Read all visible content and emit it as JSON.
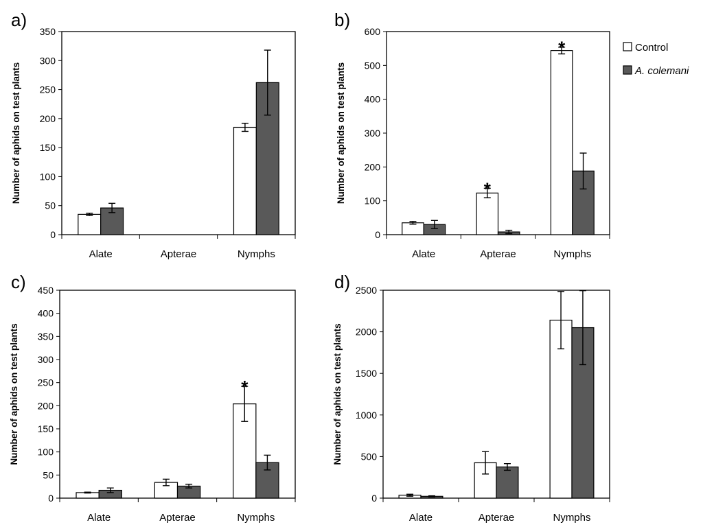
{
  "legend": {
    "items": [
      {
        "label": "Control",
        "color": "#ffffff"
      },
      {
        "label": "A. colemani",
        "color": "#595959"
      }
    ]
  },
  "chart_data": [
    {
      "panel_label": "a)",
      "type": "bar",
      "categories": [
        "Alate",
        "Apterae",
        "Nymphs"
      ],
      "ylabel": "Number of aphids on test plants",
      "ylim": [
        0,
        350
      ],
      "yticks": [
        0,
        50,
        100,
        150,
        200,
        250,
        300,
        350
      ],
      "series": [
        {
          "name": "Control",
          "values": [
            35,
            0,
            185
          ],
          "errors": [
            2,
            0,
            7
          ],
          "significant": [
            false,
            false,
            false
          ]
        },
        {
          "name": "A. colemani",
          "values": [
            46,
            0,
            262
          ],
          "errors": [
            8,
            0,
            56
          ],
          "significant": [
            false,
            false,
            false
          ]
        }
      ]
    },
    {
      "panel_label": "b)",
      "type": "bar",
      "categories": [
        "Alate",
        "Apterae",
        "Nymphs"
      ],
      "ylabel": "Number of aphids on test plants",
      "ylim": [
        0,
        600
      ],
      "yticks": [
        0,
        100,
        200,
        300,
        400,
        500,
        600
      ],
      "series": [
        {
          "name": "Control",
          "values": [
            35,
            123,
            544
          ],
          "errors": [
            4,
            14,
            10
          ],
          "significant": [
            false,
            true,
            true
          ]
        },
        {
          "name": "A. colemani",
          "values": [
            30,
            8,
            188
          ],
          "errors": [
            12,
            5,
            53
          ],
          "significant": [
            false,
            false,
            false
          ]
        }
      ]
    },
    {
      "panel_label": "c)",
      "type": "bar",
      "categories": [
        "Alate",
        "Apterae",
        "Nymphs"
      ],
      "ylabel": "Number of aphids on test plants",
      "ylim": [
        0,
        450
      ],
      "yticks": [
        0,
        50,
        100,
        150,
        200,
        250,
        300,
        350,
        400,
        450
      ],
      "series": [
        {
          "name": "Control",
          "values": [
            12,
            34,
            204
          ],
          "errors": [
            1,
            7,
            38
          ],
          "significant": [
            false,
            false,
            true
          ]
        },
        {
          "name": "A. colemani",
          "values": [
            17,
            26,
            77
          ],
          "errors": [
            5,
            4,
            16
          ],
          "significant": [
            false,
            false,
            false
          ]
        }
      ]
    },
    {
      "panel_label": "d)",
      "type": "bar",
      "categories": [
        "Alate",
        "Apterae",
        "Nymphs"
      ],
      "ylabel": "Number of aphids on test plants",
      "ylim": [
        0,
        2500
      ],
      "yticks": [
        0,
        500,
        1000,
        1500,
        2000,
        2500
      ],
      "series": [
        {
          "name": "Control",
          "values": [
            35,
            425,
            2140
          ],
          "errors": [
            12,
            135,
            345
          ],
          "significant": [
            false,
            false,
            false
          ]
        },
        {
          "name": "A. colemani",
          "values": [
            22,
            375,
            2050
          ],
          "errors": [
            6,
            40,
            445
          ],
          "significant": [
            false,
            false,
            false
          ]
        }
      ]
    }
  ]
}
